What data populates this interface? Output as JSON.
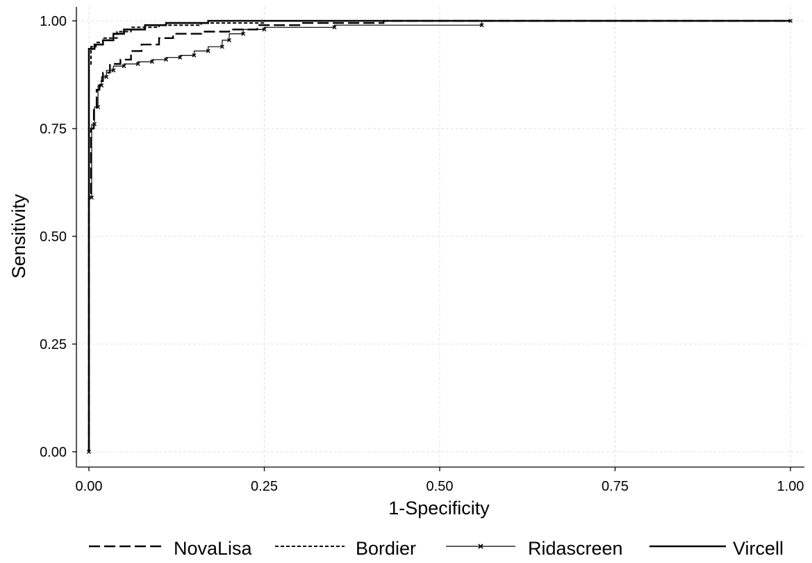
{
  "chart_data": {
    "type": "line",
    "title": "",
    "xlabel": "1-Specificity",
    "ylabel": "Sensitivity",
    "xlim": [
      0,
      1
    ],
    "ylim": [
      0,
      1
    ],
    "x_ticks": [
      "0.00",
      "0.25",
      "0.50",
      "0.75",
      "1.00"
    ],
    "y_ticks": [
      "0.00",
      "0.25",
      "0.50",
      "0.75",
      "1.00"
    ],
    "grid": true,
    "legend_position": "bottom",
    "line_color": "#000000",
    "grid_color": "#e0e0e0",
    "series": [
      {
        "name": "NovaLisa",
        "style": "long-dash",
        "points": [
          [
            0,
            0
          ],
          [
            0,
            0.6
          ],
          [
            0.003,
            0.6
          ],
          [
            0.003,
            0.75
          ],
          [
            0.007,
            0.75
          ],
          [
            0.007,
            0.8
          ],
          [
            0.011,
            0.8
          ],
          [
            0.011,
            0.84
          ],
          [
            0.015,
            0.84
          ],
          [
            0.015,
            0.86
          ],
          [
            0.02,
            0.86
          ],
          [
            0.02,
            0.88
          ],
          [
            0.03,
            0.88
          ],
          [
            0.03,
            0.9
          ],
          [
            0.045,
            0.9
          ],
          [
            0.045,
            0.91
          ],
          [
            0.06,
            0.91
          ],
          [
            0.06,
            0.93
          ],
          [
            0.075,
            0.93
          ],
          [
            0.075,
            0.945
          ],
          [
            0.1,
            0.945
          ],
          [
            0.1,
            0.96
          ],
          [
            0.12,
            0.96
          ],
          [
            0.12,
            0.97
          ],
          [
            0.16,
            0.97
          ],
          [
            0.16,
            0.975
          ],
          [
            0.2,
            0.975
          ],
          [
            0.2,
            0.98
          ],
          [
            0.24,
            0.98
          ],
          [
            0.24,
            0.99
          ],
          [
            0.3,
            0.99
          ],
          [
            0.3,
            0.995
          ],
          [
            0.42,
            0.995
          ],
          [
            0.42,
            1
          ],
          [
            1,
            1
          ]
        ]
      },
      {
        "name": "Bordier",
        "style": "short-dash",
        "points": [
          [
            0,
            0
          ],
          [
            0,
            0.9
          ],
          [
            0.003,
            0.9
          ],
          [
            0.003,
            0.94
          ],
          [
            0.01,
            0.94
          ],
          [
            0.01,
            0.95
          ],
          [
            0.02,
            0.95
          ],
          [
            0.02,
            0.96
          ],
          [
            0.04,
            0.96
          ],
          [
            0.04,
            0.975
          ],
          [
            0.06,
            0.975
          ],
          [
            0.06,
            0.985
          ],
          [
            0.1,
            0.985
          ],
          [
            0.1,
            0.99
          ],
          [
            0.16,
            0.99
          ],
          [
            0.16,
            0.995
          ],
          [
            0.25,
            0.995
          ],
          [
            0.25,
            1
          ],
          [
            1,
            1
          ]
        ]
      },
      {
        "name": "Ridascreen",
        "style": "thin-marked",
        "points": [
          [
            0,
            0
          ],
          [
            0,
            0.59
          ],
          [
            0.004,
            0.59
          ],
          [
            0.004,
            0.76
          ],
          [
            0.008,
            0.76
          ],
          [
            0.008,
            0.8
          ],
          [
            0.013,
            0.8
          ],
          [
            0.013,
            0.85
          ],
          [
            0.018,
            0.85
          ],
          [
            0.018,
            0.87
          ],
          [
            0.025,
            0.87
          ],
          [
            0.025,
            0.885
          ],
          [
            0.035,
            0.885
          ],
          [
            0.035,
            0.895
          ],
          [
            0.05,
            0.895
          ],
          [
            0.05,
            0.9
          ],
          [
            0.07,
            0.9
          ],
          [
            0.07,
            0.905
          ],
          [
            0.09,
            0.905
          ],
          [
            0.09,
            0.91
          ],
          [
            0.11,
            0.91
          ],
          [
            0.11,
            0.915
          ],
          [
            0.13,
            0.915
          ],
          [
            0.13,
            0.92
          ],
          [
            0.15,
            0.92
          ],
          [
            0.15,
            0.93
          ],
          [
            0.17,
            0.93
          ],
          [
            0.17,
            0.94
          ],
          [
            0.19,
            0.94
          ],
          [
            0.19,
            0.955
          ],
          [
            0.2,
            0.955
          ],
          [
            0.2,
            0.97
          ],
          [
            0.22,
            0.97
          ],
          [
            0.22,
            0.98
          ],
          [
            0.25,
            0.98
          ],
          [
            0.25,
            0.985
          ],
          [
            0.35,
            0.985
          ],
          [
            0.35,
            0.99
          ],
          [
            0.56,
            0.99
          ],
          [
            0.56,
            1
          ],
          [
            1,
            1
          ]
        ]
      },
      {
        "name": "Vircell",
        "style": "solid",
        "points": [
          [
            0,
            0
          ],
          [
            0,
            0.935
          ],
          [
            0.008,
            0.935
          ],
          [
            0.008,
            0.945
          ],
          [
            0.02,
            0.945
          ],
          [
            0.02,
            0.955
          ],
          [
            0.035,
            0.955
          ],
          [
            0.035,
            0.97
          ],
          [
            0.05,
            0.97
          ],
          [
            0.05,
            0.98
          ],
          [
            0.08,
            0.98
          ],
          [
            0.08,
            0.99
          ],
          [
            0.11,
            0.99
          ],
          [
            0.11,
            0.995
          ],
          [
            0.17,
            0.995
          ],
          [
            0.17,
            1
          ],
          [
            1,
            1
          ]
        ]
      }
    ]
  }
}
